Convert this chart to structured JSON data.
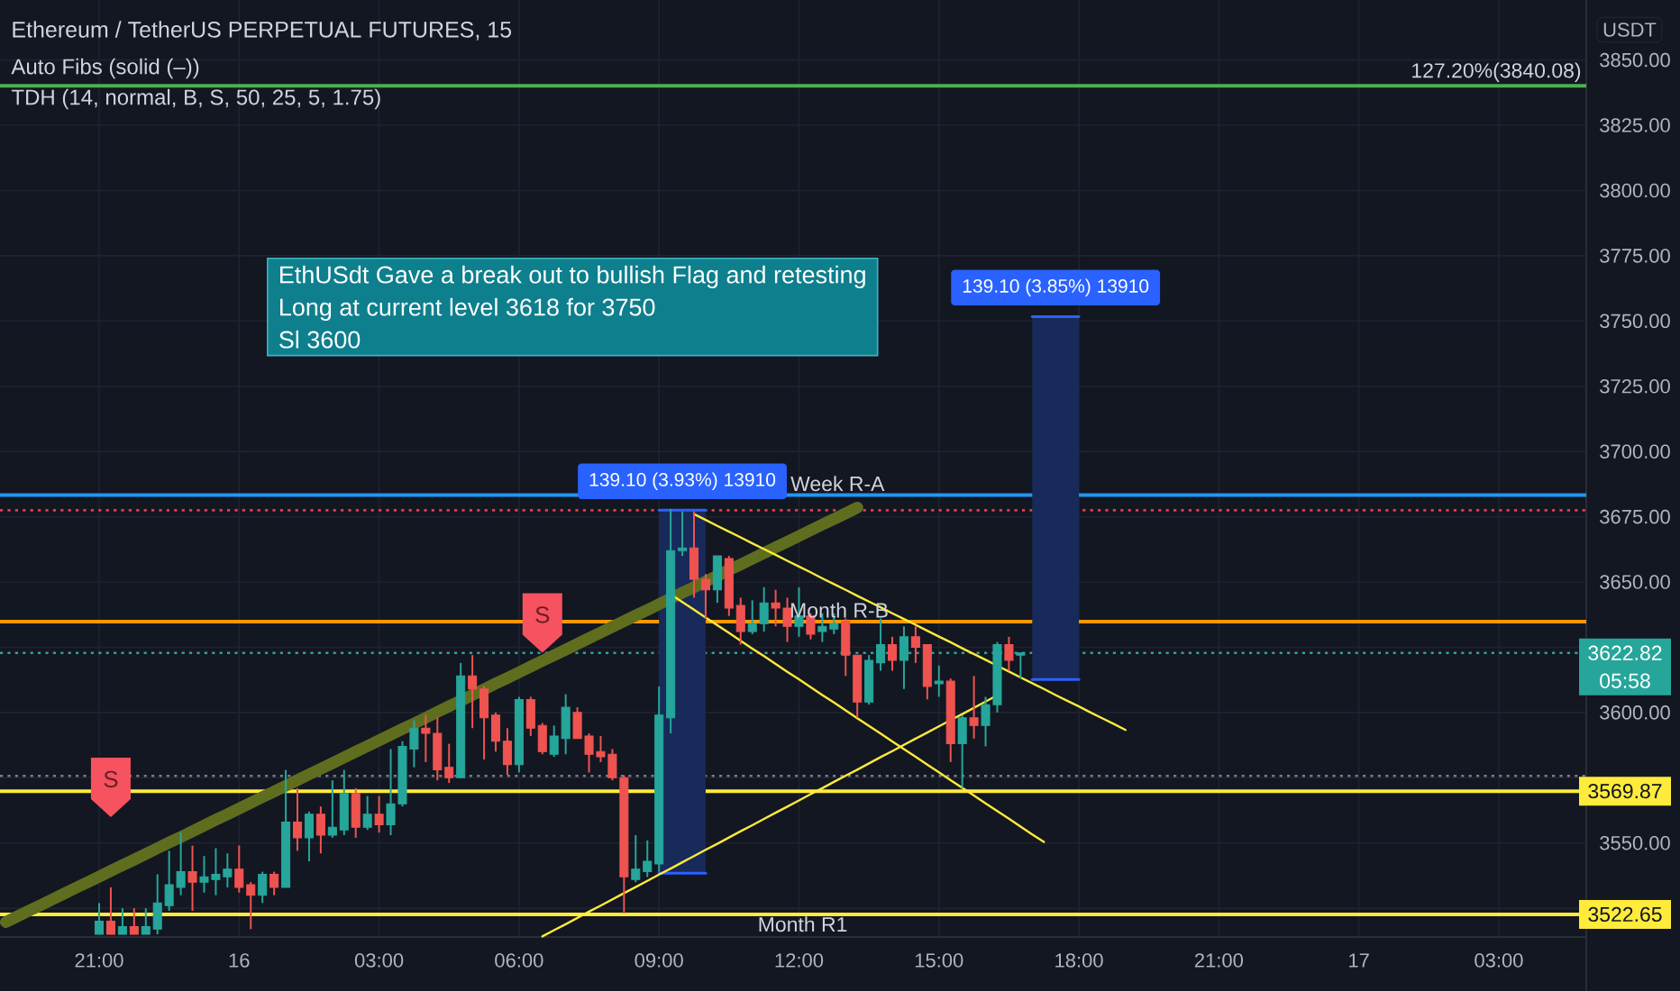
{
  "chart_data": {
    "type": "candlestick",
    "title": "Ethereum / TetherUS PERPETUAL FUTURES, 15",
    "ylabel": "USDT",
    "categories": [
      null,
      null,
      null,
      null,
      null,
      null,
      null,
      null,
      "21:00",
      null,
      null,
      null,
      null,
      null,
      null,
      null,
      null,
      null,
      null,
      null,
      "16",
      null,
      null,
      null,
      null,
      null,
      null,
      null,
      null,
      null,
      null,
      null,
      "03:00",
      null,
      null,
      null,
      null,
      null,
      null,
      null,
      null,
      null,
      null,
      null,
      "06:00",
      null,
      null,
      null,
      null,
      null,
      null,
      null,
      null,
      null,
      null,
      null,
      "09:00",
      null,
      null,
      null,
      null,
      null,
      null,
      null,
      null,
      null,
      null,
      null,
      "12:00",
      null,
      null,
      null,
      null,
      null,
      null,
      null,
      null,
      null,
      null,
      null,
      "15:00",
      null,
      null,
      null,
      null,
      null,
      null,
      null,
      null,
      null,
      null,
      null,
      "18:00",
      null,
      null,
      null,
      null,
      null,
      null,
      null,
      null,
      null,
      null,
      null,
      "21:00",
      null,
      null,
      null,
      null,
      null,
      null,
      null,
      null,
      null,
      null,
      null,
      "17",
      null,
      null,
      null,
      null,
      null,
      null,
      null,
      null,
      null,
      null,
      null,
      "03:00",
      null,
      null,
      null,
      null,
      null,
      null,
      null
    ],
    "ohlc": [
      null,
      null,
      null,
      null,
      null,
      null,
      null,
      null,
      [
        3515,
        3527,
        3515,
        3520
      ],
      [
        3520,
        3533,
        3515,
        3515
      ],
      [
        3515,
        3525,
        3515,
        3518
      ],
      [
        3518,
        3525,
        3515,
        3515
      ],
      [
        3515,
        3525,
        3515,
        3518
      ],
      [
        3517,
        3538,
        3515,
        3527
      ],
      [
        3526,
        3547,
        3524,
        3534
      ],
      [
        3533,
        3554,
        3530,
        3539
      ],
      [
        3539,
        3549,
        3524,
        3535
      ],
      [
        3535,
        3545,
        3531,
        3537
      ],
      [
        3536,
        3548,
        3530,
        3538
      ],
      [
        3537,
        3546,
        3533,
        3540
      ],
      [
        3540,
        3549,
        3531,
        3533
      ],
      [
        3534,
        3535,
        3517,
        3530
      ],
      [
        3530,
        3539,
        3527,
        3538
      ],
      [
        3538,
        3539,
        3530,
        3533
      ],
      [
        3533,
        3578,
        3533,
        3558
      ],
      [
        3558,
        3571,
        3547,
        3552
      ],
      [
        3552,
        3562,
        3543,
        3561
      ],
      [
        3561,
        3564,
        3546,
        3553
      ],
      [
        3553,
        3574,
        3552,
        3556
      ],
      [
        3555,
        3578,
        3553,
        3569
      ],
      [
        3569,
        3571,
        3552,
        3556
      ],
      [
        3556,
        3568,
        3555,
        3561
      ],
      [
        3561,
        3568,
        3554,
        3557
      ],
      [
        3557,
        3586,
        3553,
        3565
      ],
      [
        3565,
        3589,
        3564,
        3587
      ],
      [
        3586,
        3597,
        3579,
        3594
      ],
      [
        3594,
        3599,
        3581,
        3592
      ],
      [
        3592,
        3598,
        3574,
        3578
      ],
      [
        3579,
        3588,
        3573,
        3575
      ],
      [
        3575,
        3619,
        3575,
        3614
      ],
      [
        3614,
        3622,
        3594,
        3609
      ],
      [
        3609,
        3610,
        3582,
        3598
      ],
      [
        3599,
        3600,
        3585,
        3589
      ],
      [
        3589,
        3594,
        3576,
        3580
      ],
      [
        3580,
        3606,
        3577,
        3605
      ],
      [
        3605,
        3606,
        3591,
        3594
      ],
      [
        3595,
        3596,
        3584,
        3585
      ],
      [
        3584,
        3595,
        3583,
        3591
      ],
      [
        3590,
        3607,
        3584,
        3602
      ],
      [
        3600,
        3602,
        3590,
        3590
      ],
      [
        3591,
        3592,
        3577,
        3584
      ],
      [
        3585,
        3591,
        3581,
        3583
      ],
      [
        3584,
        3586,
        3574,
        3575
      ],
      [
        3575,
        3576,
        3523,
        3537
      ],
      [
        3536,
        3553,
        3535,
        3540
      ],
      [
        3539,
        3551,
        3537,
        3543
      ],
      [
        3542,
        3610,
        3539,
        3599
      ],
      [
        3598,
        3678,
        3592,
        3662
      ],
      [
        3662,
        3677,
        3660,
        3663
      ],
      [
        3663,
        3677,
        3644,
        3651
      ],
      [
        3651,
        3653,
        3636,
        3647
      ],
      [
        3647,
        3660,
        3642,
        3660
      ],
      [
        3659,
        3660,
        3637,
        3640
      ],
      [
        3641,
        3644,
        3626,
        3631
      ],
      [
        3631,
        3643,
        3630,
        3634
      ],
      [
        3634,
        3648,
        3631,
        3642
      ],
      [
        3642,
        3647,
        3633,
        3640
      ],
      [
        3640,
        3644,
        3627,
        3633
      ],
      [
        3633,
        3648,
        3629,
        3637
      ],
      [
        3637,
        3638,
        3628,
        3630
      ],
      [
        3631,
        3638,
        3627,
        3633
      ],
      [
        3632,
        3638,
        3630,
        3634
      ],
      [
        3635,
        3636,
        3614,
        3622
      ],
      [
        3622,
        3622,
        3598,
        3604
      ],
      [
        3604,
        3622,
        3603,
        3620
      ],
      [
        3619,
        3636,
        3616,
        3626
      ],
      [
        3626,
        3629,
        3616,
        3620
      ],
      [
        3620,
        3633,
        3609,
        3629
      ],
      [
        3629,
        3633,
        3619,
        3625
      ],
      [
        3626,
        3626,
        3605,
        3610
      ],
      [
        3611,
        3618,
        3606,
        3612
      ],
      [
        3612,
        3613,
        3581,
        3588
      ],
      [
        3588,
        3599,
        3571,
        3598
      ],
      [
        3598,
        3614,
        3590,
        3595
      ],
      [
        3595,
        3606,
        3587,
        3603
      ],
      [
        3603,
        3627,
        3600,
        3626
      ],
      [
        3626,
        3629,
        3616,
        3620
      ],
      [
        3622,
        3623,
        3613,
        3622.82
      ],
      null,
      null,
      null,
      null,
      null,
      null,
      null,
      null,
      null,
      null,
      null,
      null,
      null,
      null,
      null,
      null,
      null,
      null,
      null,
      null,
      null,
      null,
      null,
      null,
      null,
      null,
      null,
      null,
      null,
      null,
      null,
      null,
      null,
      null,
      null,
      null,
      null,
      null,
      null,
      null,
      null,
      null,
      null,
      null,
      null,
      null,
      null,
      null
    ],
    "colors": [
      null,
      null,
      null,
      null,
      null,
      null,
      null,
      null,
      "#26a69a",
      "#ef5350",
      "#26a69a",
      "#ef5350",
      "#26a69a",
      "#26a69a",
      "#26a69a",
      "#26a69a",
      "#ef5350",
      "#26a69a",
      "#26a69a",
      "#26a69a",
      "#ef5350",
      "#ef5350",
      "#26a69a",
      "#ef5350",
      "#26a69a",
      "#ef5350",
      "#26a69a",
      "#ef5350",
      "#26a69a",
      "#26a69a",
      "#ef5350",
      "#26a69a",
      "#ef5350",
      "#26a69a",
      "#26a69a",
      "#26a69a",
      "#ef5350",
      "#ef5350",
      "#ef5350",
      "#26a69a",
      "#ef5350",
      "#ef5350",
      "#ef5350",
      "#ef5350",
      "#26a69a",
      "#ef5350",
      "#ef5350",
      "#26a69a",
      "#26a69a",
      "#ef5350",
      "#ef5350",
      "#ef5350",
      "#ef5350",
      "#ef5350",
      "#26a69a",
      "#26a69a",
      "#26a69a",
      "#26a69a",
      "#26a69a",
      "#ef5350",
      "#ef5350",
      "#26a69a",
      "#ef5350",
      "#ef5350",
      "#26a69a",
      "#26a69a",
      "#ef5350",
      "#ef5350",
      "#26a69a",
      "#ef5350",
      "#26a69a",
      "#26a69a",
      "#ef5350",
      "#ef5350",
      "#26a69a",
      "#26a69a",
      "#ef5350",
      "#26a69a",
      "#ef5350",
      "#ef5350",
      "#26a69a",
      "#ef5350",
      "#26a69a",
      "#ef5350",
      "#26a69a",
      "#26a69a",
      "#ef5350",
      "#26a69a",
      null,
      null,
      null,
      null,
      null,
      null,
      null,
      null,
      null,
      null,
      null,
      null,
      null,
      null,
      null,
      null,
      null,
      null,
      null,
      null,
      null,
      null,
      null,
      null,
      null,
      null,
      null,
      null,
      null,
      null,
      null,
      null,
      null,
      null,
      null,
      null,
      null,
      null,
      null,
      null,
      null,
      null,
      null,
      null,
      null,
      null,
      null,
      null
    ],
    "series": [
      {
        "type": "line",
        "color": "#2962ff",
        "values": [
          null,
          null,
          null,
          null,
          null,
          null,
          null,
          null,
          null,
          null,
          null,
          null,
          null,
          null,
          null,
          null,
          null,
          null,
          null,
          null,
          null,
          null,
          null,
          null,
          null,
          null,
          null,
          null,
          null,
          null,
          null,
          null,
          null,
          null,
          null,
          null,
          null,
          null,
          null,
          null,
          null,
          null,
          null,
          null,
          null,
          null,
          null,
          null,
          null,
          null,
          null,
          null,
          null,
          null,
          null,
          null,
          3677.5,
          3677.5,
          3677.5,
          3677.5,
          3677.5,
          null,
          null,
          null,
          null,
          null,
          null,
          null,
          null,
          null,
          null,
          null,
          null,
          null,
          null,
          null,
          null,
          null,
          null,
          null,
          null,
          null,
          null,
          null,
          null,
          null,
          null,
          null,
          3751.7,
          3751.7,
          3751.7,
          3751.7,
          3751.7,
          null,
          null,
          null,
          null,
          null,
          null,
          null,
          null,
          null,
          null,
          null,
          null,
          null,
          null,
          null,
          null,
          null,
          null,
          null,
          null,
          null,
          null,
          null,
          null,
          null,
          null,
          null,
          null,
          null,
          null,
          null,
          null,
          null,
          null,
          null,
          null,
          null,
          null,
          null,
          null,
          null,
          null,
          null
        ],
        "lower": [
          null,
          null,
          null,
          null,
          null,
          null,
          null,
          null,
          null,
          null,
          null,
          null,
          null,
          null,
          null,
          null,
          null,
          null,
          null,
          null,
          null,
          null,
          null,
          null,
          null,
          null,
          null,
          null,
          null,
          null,
          null,
          null,
          null,
          null,
          null,
          null,
          null,
          null,
          null,
          null,
          null,
          null,
          null,
          null,
          null,
          null,
          null,
          null,
          null,
          null,
          null,
          null,
          null,
          null,
          null,
          null,
          3538.4,
          3538.4,
          3538.4,
          3538.4,
          3538.4,
          null,
          null,
          null,
          null,
          null,
          null,
          null,
          null,
          null,
          null,
          null,
          null,
          null,
          null,
          null,
          null,
          null,
          null,
          null,
          null,
          null,
          null,
          null,
          null,
          null,
          null,
          null,
          3612.6,
          3612.6,
          3612.6,
          3612.6,
          3612.6,
          null,
          null,
          null,
          null,
          null,
          null,
          null,
          null,
          null,
          null,
          null,
          null,
          null,
          null,
          null,
          null,
          null,
          null,
          null,
          null,
          null,
          null,
          null,
          null,
          null,
          null,
          null,
          null,
          null,
          null,
          null,
          null,
          null,
          null,
          null,
          null,
          null,
          null,
          null,
          null,
          null,
          null,
          null
        ],
        "upper": [
          null,
          null,
          null,
          null,
          null,
          null,
          null,
          null,
          null,
          null,
          null,
          null,
          null,
          null,
          null,
          null,
          null,
          null,
          null,
          null,
          null,
          null,
          null,
          null,
          null,
          null,
          null,
          null,
          null,
          null,
          null,
          null,
          null,
          null,
          null,
          null,
          null,
          null,
          null,
          null,
          null,
          null,
          null,
          null,
          null,
          null,
          null,
          null,
          null,
          null,
          null,
          null,
          null,
          null,
          null,
          null,
          3677.5,
          3677.5,
          3677.5,
          3677.5,
          3677.5,
          null,
          null,
          null,
          null,
          null,
          null,
          null,
          null,
          null,
          null,
          null,
          null,
          null,
          null,
          null,
          null,
          null,
          null,
          null,
          null,
          null,
          null,
          null,
          null,
          null,
          null,
          null,
          3751.7,
          3751.7,
          3751.7,
          3751.7,
          3751.7,
          null,
          null,
          null,
          null,
          null,
          null,
          null,
          null,
          null,
          null,
          null,
          null,
          null,
          null,
          null,
          null,
          null,
          null,
          null,
          null,
          null,
          null,
          null,
          null,
          null,
          null,
          null,
          null,
          null,
          null,
          null,
          null,
          null,
          null,
          null,
          null,
          null,
          null,
          null,
          null,
          null,
          null,
          null
        ]
      },
      {
        "type": "line",
        "color": "#2962ff",
        "values": [
          null,
          null,
          null,
          null,
          null,
          null,
          null,
          null,
          null,
          null,
          null,
          null,
          null,
          null,
          null,
          null,
          null,
          null,
          null,
          null,
          null,
          null,
          null,
          null,
          null,
          null,
          null,
          null,
          null,
          null,
          null,
          null,
          null,
          null,
          null,
          null,
          null,
          null,
          null,
          null,
          null,
          null,
          null,
          null,
          null,
          null,
          null,
          null,
          null,
          null,
          null,
          null,
          null,
          null,
          null,
          null,
          3538.4,
          3538.4,
          3538.4,
          3538.4,
          3538.4,
          null,
          null,
          null,
          null,
          null,
          null,
          null,
          null,
          null,
          null,
          null,
          null,
          null,
          null,
          null,
          null,
          null,
          null,
          null,
          null,
          null,
          null,
          null,
          null,
          null,
          null,
          null,
          3612.6,
          3612.6,
          3612.6,
          3612.6,
          3612.6,
          null,
          null,
          null,
          null,
          null,
          null,
          null,
          null,
          null,
          null,
          null,
          null,
          null,
          null,
          null,
          null,
          null,
          null,
          null,
          null,
          null,
          null,
          null,
          null,
          null,
          null,
          null,
          null,
          null,
          null,
          null,
          null,
          null,
          null,
          null,
          null,
          null,
          null,
          null,
          null,
          null,
          null,
          null
        ]
      },
      {
        "type": "line",
        "color": "#5f6e1e",
        "values": [
          3519.7,
          3521.9,
          3524.1,
          3526.2,
          3528.4,
          3530.6,
          3532.8,
          3534.9,
          3537.1,
          3539.3,
          3541.5,
          3543.6,
          3545.8,
          3548.0,
          3550.2,
          3552.3,
          3554.5,
          3556.7,
          3558.9,
          3561.0,
          3563.2,
          3565.4,
          3567.6,
          3569.7,
          3571.9,
          3574.1,
          3576.3,
          3578.4,
          3580.6,
          3582.8,
          3585.0,
          3587.1,
          3589.3,
          3591.5,
          3593.7,
          3595.8,
          3598.0,
          3600.2,
          3602.4,
          3604.5,
          3606.7,
          3608.9,
          3611.1,
          3613.2,
          3615.4,
          3617.6,
          3619.8,
          3621.9,
          3624.1,
          3626.3,
          3628.5,
          3630.6,
          3632.8,
          3635.0,
          3637.2,
          3639.3,
          3641.5,
          3643.7,
          3645.9,
          3648.0,
          3650.2,
          3652.4,
          3654.6,
          3656.7,
          3658.9,
          3661.1,
          3663.3,
          3665.4,
          3667.6,
          3669.8,
          3672.0,
          3674.1,
          3676.3,
          3678.5,
          null,
          null,
          null,
          null,
          null,
          null,
          null,
          null,
          null,
          null,
          null,
          null,
          null,
          null,
          null,
          null,
          null,
          null,
          null,
          null,
          null,
          null,
          null,
          null,
          null,
          null,
          null,
          null,
          null,
          null,
          null,
          null,
          null,
          null,
          null,
          null,
          null,
          null,
          null,
          null,
          null,
          null,
          null,
          null,
          null,
          null,
          null,
          null,
          null,
          null,
          null,
          null,
          null,
          null,
          null,
          null,
          null,
          null,
          null,
          null,
          null,
          null
        ]
      },
      {
        "type": "line",
        "color": "#ffeb3b",
        "values": [
          null,
          null,
          null,
          null,
          null,
          null,
          null,
          null,
          null,
          null,
          null,
          null,
          null,
          null,
          null,
          null,
          null,
          null,
          null,
          null,
          null,
          null,
          null,
          null,
          null,
          null,
          null,
          null,
          null,
          null,
          null,
          null,
          null,
          null,
          null,
          null,
          null,
          null,
          null,
          null,
          null,
          null,
          null,
          null,
          null,
          null,
          null,
          null,
          null,
          null,
          null,
          null,
          null,
          null,
          null,
          null,
          null,
          null,
          null,
          3676.0,
          3673.8,
          3671.5,
          3669.3,
          3667.1,
          3664.8,
          3662.6,
          3660.4,
          3658.1,
          3655.9,
          3653.7,
          3651.4,
          3649.2,
          3647.0,
          3644.7,
          3642.5,
          3640.3,
          3638.0,
          3635.8,
          3633.6,
          3631.3,
          3629.1,
          3626.9,
          3624.6,
          3622.4,
          3620.2,
          3617.9,
          3615.7,
          3613.4,
          3611.2,
          3609.0,
          3606.7,
          3604.5,
          3602.3,
          3600.0,
          3597.8,
          3595.6,
          3593.3,
          null,
          null,
          null,
          null,
          null,
          null,
          null,
          null,
          null,
          null,
          null,
          null,
          null,
          null,
          null,
          null,
          null,
          null,
          null,
          null,
          null,
          null,
          null,
          null,
          null,
          null,
          null,
          null,
          null,
          null,
          null,
          null,
          null,
          null,
          null,
          null,
          null,
          null,
          null
        ]
      },
      {
        "type": "line",
        "color": "#ffeb3b",
        "values": [
          null,
          null,
          null,
          null,
          null,
          null,
          null,
          null,
          null,
          null,
          null,
          null,
          null,
          null,
          null,
          null,
          null,
          null,
          null,
          null,
          null,
          null,
          null,
          null,
          null,
          null,
          null,
          null,
          null,
          null,
          null,
          null,
          null,
          null,
          null,
          null,
          null,
          null,
          null,
          null,
          null,
          null,
          null,
          null,
          null,
          null,
          null,
          null,
          null,
          null,
          null,
          null,
          null,
          null,
          null,
          null,
          null,
          3645.3,
          3642.3,
          3639.4,
          3636.4,
          3633.4,
          3630.5,
          3627.5,
          3624.5,
          3621.6,
          3618.6,
          3615.6,
          3612.7,
          3609.7,
          3606.7,
          3603.8,
          3600.8,
          3597.8,
          3594.9,
          3591.9,
          3588.9,
          3586.0,
          3583.0,
          3580.0,
          3577.1,
          3574.1,
          3571.1,
          3568.2,
          3565.2,
          3562.2,
          3559.3,
          3556.3,
          3553.3,
          3550.4,
          null,
          null,
          null,
          null,
          null,
          null,
          null,
          null,
          null,
          null,
          null,
          null,
          null,
          null,
          null,
          null,
          null,
          null,
          null,
          null,
          null,
          null,
          null,
          null,
          null,
          null,
          null,
          null,
          null,
          null,
          null,
          null,
          null,
          null,
          null,
          null,
          null,
          null,
          null,
          null,
          null,
          null,
          null,
          null,
          null,
          null
        ]
      },
      {
        "type": "line",
        "color": "#ffeb3b",
        "values": [
          null,
          null,
          null,
          null,
          null,
          null,
          null,
          null,
          null,
          null,
          null,
          null,
          null,
          null,
          null,
          null,
          null,
          null,
          null,
          null,
          null,
          null,
          null,
          null,
          null,
          null,
          null,
          null,
          null,
          null,
          null,
          null,
          null,
          null,
          null,
          null,
          null,
          null,
          null,
          null,
          null,
          null,
          null,
          null,
          null,
          null,
          3514.2,
          3516.6,
          3518.9,
          3521.3,
          3523.7,
          3526.0,
          3528.4,
          3530.8,
          3533.1,
          3535.5,
          3537.9,
          3540.2,
          3542.6,
          3545.0,
          3547.4,
          3549.7,
          3552.1,
          3554.5,
          3556.8,
          3559.2,
          3561.6,
          3563.9,
          3566.3,
          3568.7,
          3571.0,
          3573.4,
          3575.8,
          3578.1,
          3580.5,
          3582.9,
          3585.2,
          3587.6,
          3590.0,
          3592.3,
          3594.7,
          3597.1,
          3599.4,
          3601.8,
          3604.2,
          3606.6,
          null,
          null,
          null,
          null,
          null,
          null,
          null,
          null,
          null,
          null,
          null,
          null,
          null,
          null,
          null,
          null,
          null,
          null,
          null,
          null,
          null,
          null,
          null,
          null,
          null,
          null,
          null,
          null,
          null,
          null,
          null,
          null,
          null,
          null,
          null,
          null,
          null,
          null,
          null,
          null,
          null,
          null,
          null,
          null,
          null,
          null,
          null,
          null,
          null,
          null
        ]
      }
    ],
    "ylim": [
      3514,
      3873
    ],
    "yticks": [
      {
        "value": 3525,
        "label": null
      },
      {
        "value": 3550,
        "label": "3550.00"
      },
      {
        "value": 3575,
        "label": null
      },
      {
        "value": 3600,
        "label": "3600.00"
      },
      {
        "value": 3625,
        "label": null
      },
      {
        "value": 3650,
        "label": "3650.00"
      },
      {
        "value": 3675,
        "label": "3675.00"
      },
      {
        "value": 3700,
        "label": "3700.00"
      },
      {
        "value": 3725,
        "label": "3725.00"
      },
      {
        "value": 3750,
        "label": "3750.00"
      },
      {
        "value": 3775,
        "label": "3775.00"
      },
      {
        "value": 3800,
        "label": "3800.00"
      },
      {
        "value": 3825,
        "label": "3825.00"
      },
      {
        "value": 3850,
        "label": "3850.00"
      }
    ],
    "grid": true,
    "ref_lines": [
      {
        "axis": "y",
        "value": 3840.08,
        "color": "#4caf50"
      },
      {
        "axis": "y",
        "value": 3683.3,
        "color": "#2196f3"
      },
      {
        "axis": "y",
        "value": 3677.5,
        "color": "#f23645",
        "line_style": "dotted"
      },
      {
        "axis": "y",
        "value": 3634.8,
        "color": "#ff9800"
      },
      {
        "axis": "y",
        "value": 3622.82,
        "label": "3622.82",
        "color": "#26a69a",
        "line_style": "dotted"
      },
      {
        "axis": "y",
        "value": 3575.7,
        "color": "#787b86",
        "line_style": "dotted"
      },
      {
        "axis": "y",
        "value": 3569.87,
        "label": "3569.87",
        "color": "#ffeb3b"
      },
      {
        "axis": "y",
        "value": 3522.65,
        "label": "3522.65",
        "color": "#ffeb3b"
      }
    ],
    "annotations": [
      "Auto Fibs (solid (–))",
      "TDH (14, normal, B, S, 50, 25, 5, 1.75)",
      "EthUSdt Gave a break out to bullish Flag and retesting",
      "Long at current level 3618 for 3750",
      "Sl 3600",
      "05:58",
      "S",
      "S",
      {
        "text": "127.20%(3840.08)",
        "y": 3840.08
      },
      {
        "text": "Week R-A",
        "y": 3683.3
      },
      {
        "text": "Month R-B",
        "y": 3634.8
      },
      {
        "text": "Month R1",
        "y": 3522.65
      },
      {
        "text": "139.10 (3.93%) 13910",
        "y": 3677.5
      },
      {
        "text": "139.10 (3.85%) 13910",
        "y": 3751.7
      }
    ]
  }
}
